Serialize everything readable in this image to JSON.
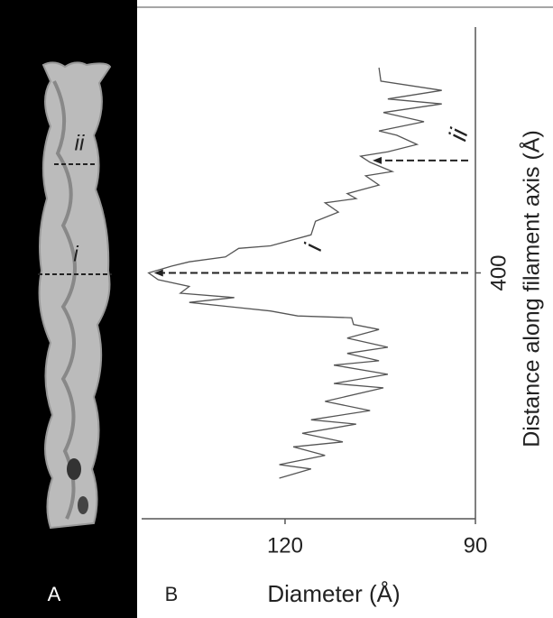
{
  "panel_a": {
    "label": "A",
    "annotations": [
      "ii",
      "i"
    ]
  },
  "chart_data": {
    "type": "line",
    "panel_label": "B",
    "x_label": "Distance along filament axis (Å)",
    "y_label": "Diameter (Å)",
    "x": [
      734,
      712,
      697,
      683,
      675,
      661,
      646,
      631,
      624,
      609,
      597,
      590,
      580,
      565,
      558,
      543,
      529,
      521,
      514,
      499,
      484,
      462,
      444,
      440,
      426,
      418,
      411,
      400,
      389,
      378,
      367,
      360,
      352,
      338,
      330,
      327,
      316,
      308,
      294,
      279,
      269,
      257,
      250,
      235,
      220,
      213,
      191,
      176,
      161,
      154,
      139,
      125,
      117,
      103,
      88,
      81,
      66
    ],
    "values": [
      105.2,
      104.9,
      95.3,
      103.8,
      95.3,
      104.5,
      98.1,
      105.2,
      102.4,
      99.2,
      103.8,
      108.1,
      106.6,
      103.1,
      107.3,
      105.2,
      110.2,
      108.8,
      113.7,
      111.6,
      115.2,
      115.9,
      122.3,
      127.3,
      129.4,
      135.1,
      137.9,
      141.5,
      140.0,
      135.1,
      136.5,
      128.0,
      135.1,
      122.3,
      118.0,
      109.5,
      109.2,
      105.2,
      110.2,
      103.8,
      110.2,
      105.2,
      112.3,
      103.8,
      112.3,
      104.5,
      113.7,
      106.6,
      115.9,
      108.8,
      117.3,
      110.9,
      118.7,
      113.7,
      120.9,
      115.9,
      120.9
    ],
    "color": "#555555",
    "xlim": [
      0,
      800
    ],
    "xticks": [
      400
    ],
    "ylim": [
      142.6,
      90
    ],
    "yticks": [
      120,
      90
    ],
    "annotations": [
      {
        "text": "i",
        "x": 400
      },
      {
        "text": "ii",
        "x": 583
      }
    ]
  }
}
